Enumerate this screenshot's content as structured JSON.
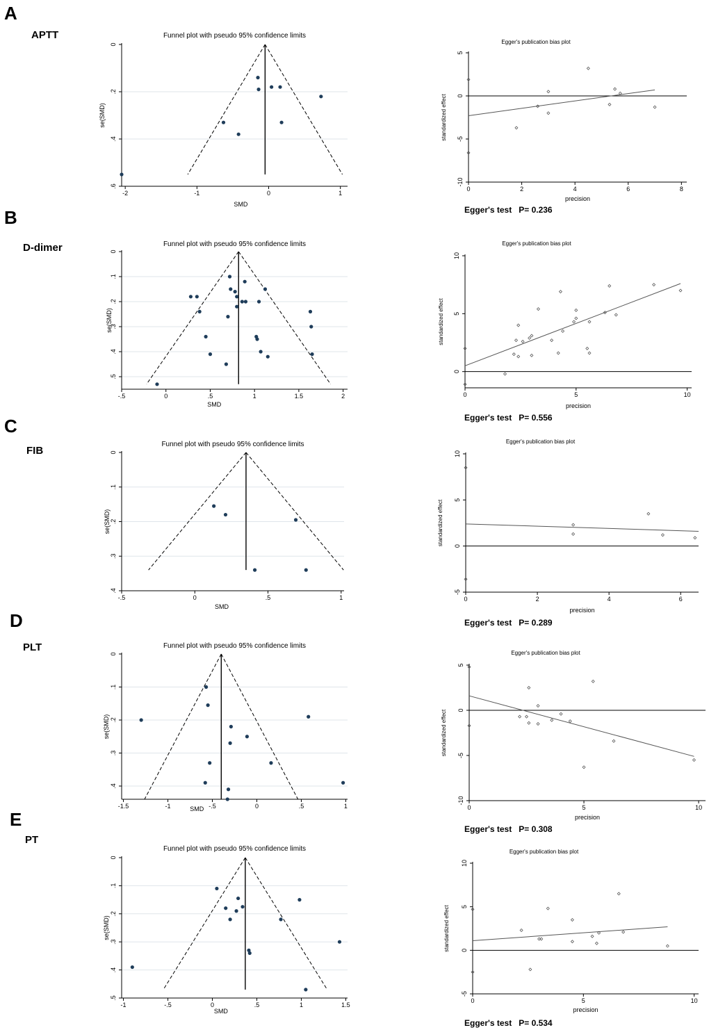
{
  "figure": {
    "panels": [
      {
        "letter": "A",
        "variable": "APTT",
        "egger_label": "Egger's test",
        "egger_p": "P= 0.236"
      },
      {
        "letter": "B",
        "variable": "D-dimer",
        "egger_label": "Egger's test",
        "egger_p": "P= 0.556"
      },
      {
        "letter": "C",
        "variable": "FIB",
        "egger_label": "Egger's test",
        "egger_p": "P= 0.289"
      },
      {
        "letter": "D",
        "variable": "PLT",
        "egger_label": "Egger's test",
        "egger_p": "P= 0.308"
      },
      {
        "letter": "E",
        "variable": "PT",
        "egger_label": "Egger's test",
        "egger_p": "P= 0.534"
      }
    ]
  },
  "chart_data": [
    {
      "id": "funnel-a",
      "type": "scatter",
      "title": "Funnel plot with pseudo 95% confidence limits",
      "xlabel": "SMD",
      "ylabel": "se(SMD)",
      "xlim": [
        -2.05,
        1.1
      ],
      "ylim": [
        0,
        0.6
      ],
      "xticks": [
        -2,
        -1,
        0,
        1
      ],
      "xtick_labels": [
        "-2",
        "-1",
        "0",
        "1"
      ],
      "yticks": [
        0,
        0.2,
        0.4,
        0.6
      ],
      "ytick_labels": [
        "0",
        ".2",
        ".4",
        ".6"
      ],
      "pooled": -0.05,
      "funnel_max_se": 0.55,
      "grid": true,
      "points": [
        [
          -2.05,
          0.55
        ],
        [
          -0.63,
          0.33
        ],
        [
          -0.42,
          0.38
        ],
        [
          -0.15,
          0.14
        ],
        [
          -0.14,
          0.19
        ],
        [
          0.04,
          0.18
        ],
        [
          0.16,
          0.18
        ],
        [
          0.18,
          0.33
        ],
        [
          0.73,
          0.22
        ]
      ]
    },
    {
      "id": "egger-a",
      "type": "scatter",
      "title": "Egger's publication bias plot",
      "xlabel": "precision",
      "ylabel": "standardized effect",
      "xlim": [
        0,
        8.2
      ],
      "ylim": [
        -10,
        5
      ],
      "xticks": [
        0,
        2,
        4,
        6,
        8
      ],
      "xtick_labels": [
        "0",
        "2",
        "4",
        "6",
        "8"
      ],
      "yticks": [
        -10,
        -5,
        0,
        5
      ],
      "ytick_labels": [
        "-10",
        "-5",
        "0",
        "5"
      ],
      "ci_low": -10,
      "ci_high": 5,
      "fit": [
        [
          0,
          -2.3
        ],
        [
          7,
          0.7
        ]
      ],
      "points": [
        [
          0,
          1.9
        ],
        [
          0,
          -6.6
        ],
        [
          1.8,
          -3.7
        ],
        [
          2.6,
          -1.2
        ],
        [
          3,
          0.5
        ],
        [
          3,
          -2
        ],
        [
          4.5,
          3.2
        ],
        [
          5.3,
          -1
        ],
        [
          5.5,
          0.8
        ],
        [
          5.7,
          0.3
        ],
        [
          7,
          -1.3
        ]
      ]
    },
    {
      "id": "funnel-b",
      "type": "scatter",
      "title": "Funnel plot with pseudo 95% confidence limits",
      "xlabel": "SMD",
      "ylabel": "se(SMD)",
      "xlim": [
        -0.5,
        2.05
      ],
      "ylim": [
        0,
        0.55
      ],
      "xticks": [
        -0.5,
        0,
        0.5,
        1,
        1.5,
        2
      ],
      "xtick_labels": [
        "-.5",
        "0",
        ".5",
        "1",
        "1.5",
        "2"
      ],
      "yticks": [
        0,
        0.1,
        0.2,
        0.3,
        0.4,
        0.5
      ],
      "ytick_labels": [
        "0",
        ".1",
        ".2",
        ".3",
        ".4",
        ".5"
      ],
      "pooled": 0.82,
      "funnel_max_se": 0.53,
      "grid": true,
      "points": [
        [
          -0.1,
          0.53
        ],
        [
          0.28,
          0.18
        ],
        [
          0.35,
          0.18
        ],
        [
          0.38,
          0.24
        ],
        [
          0.45,
          0.34
        ],
        [
          0.5,
          0.41
        ],
        [
          0.68,
          0.45
        ],
        [
          0.7,
          0.26
        ],
        [
          0.72,
          0.1
        ],
        [
          0.73,
          0.15
        ],
        [
          0.78,
          0.16
        ],
        [
          0.8,
          0.18
        ],
        [
          0.8,
          0.22
        ],
        [
          0.86,
          0.2
        ],
        [
          0.89,
          0.12
        ],
        [
          0.9,
          0.2
        ],
        [
          1.02,
          0.34
        ],
        [
          1.03,
          0.35
        ],
        [
          1.05,
          0.2
        ],
        [
          1.07,
          0.4
        ],
        [
          1.12,
          0.15
        ],
        [
          1.15,
          0.42
        ],
        [
          1.63,
          0.24
        ],
        [
          1.64,
          0.3
        ],
        [
          1.65,
          0.41
        ]
      ]
    },
    {
      "id": "egger-b",
      "type": "scatter",
      "title": "Egger's publication bias plot",
      "xlabel": "precision",
      "ylabel": "standardized effect",
      "xlim": [
        0,
        10.2
      ],
      "ylim": [
        -1.4,
        10
      ],
      "xticks": [
        0,
        5,
        10
      ],
      "xtick_labels": [
        "0",
        "5",
        "10"
      ],
      "yticks": [
        0,
        5,
        10
      ],
      "ytick_labels": [
        "0",
        "5",
        "10"
      ],
      "ci_low": -1.1,
      "ci_high": 10,
      "fit": [
        [
          0,
          0.5
        ],
        [
          9.7,
          7.6
        ]
      ],
      "points": [
        [
          0,
          2
        ],
        [
          0,
          -1.1
        ],
        [
          1.8,
          -0.2
        ],
        [
          2.2,
          1.5
        ],
        [
          2.3,
          2.7
        ],
        [
          2.4,
          4
        ],
        [
          2.4,
          1.3
        ],
        [
          2.6,
          2.6
        ],
        [
          2.9,
          2.9
        ],
        [
          3,
          3.1
        ],
        [
          3,
          1.4
        ],
        [
          3.3,
          5.4
        ],
        [
          3.9,
          2.7
        ],
        [
          4.2,
          1.6
        ],
        [
          4.3,
          6.9
        ],
        [
          4.4,
          3.5
        ],
        [
          4.9,
          4.3
        ],
        [
          5,
          5.3
        ],
        [
          5,
          4.6
        ],
        [
          5.5,
          2
        ],
        [
          5.6,
          1.6
        ],
        [
          5.6,
          4.3
        ],
        [
          6.3,
          5.1
        ],
        [
          6.5,
          7.4
        ],
        [
          6.8,
          4.9
        ],
        [
          8.5,
          7.5
        ],
        [
          9.7,
          7
        ]
      ]
    },
    {
      "id": "funnel-c",
      "type": "scatter",
      "title": "Funnel plot with pseudo 95% confidence limits",
      "xlabel": "SMD",
      "ylabel": "se(SMD)",
      "xlim": [
        -0.5,
        1.02
      ],
      "ylim": [
        0,
        0.4
      ],
      "xticks": [
        -0.5,
        0,
        0.5,
        1
      ],
      "xtick_labels": [
        "-.5",
        "0",
        ".5",
        "1"
      ],
      "yticks": [
        0,
        0.1,
        0.2,
        0.3,
        0.4
      ],
      "ytick_labels": [
        "0",
        ".1",
        ".2",
        ".3",
        ".4"
      ],
      "pooled": 0.35,
      "funnel_max_se": 0.34,
      "grid": true,
      "points": [
        [
          0.13,
          0.155
        ],
        [
          0.21,
          0.18
        ],
        [
          0.41,
          0.34
        ],
        [
          0.69,
          0.195
        ],
        [
          0.76,
          0.34
        ]
      ]
    },
    {
      "id": "egger-c",
      "type": "scatter",
      "title": "Egger's publication bias plot",
      "xlabel": "precision",
      "ylabel": "standardized effect",
      "xlim": [
        0,
        6.5
      ],
      "ylim": [
        -5,
        10
      ],
      "xticks": [
        0,
        2,
        4,
        6
      ],
      "xtick_labels": [
        "0",
        "2",
        "4",
        "6"
      ],
      "yticks": [
        -5,
        0,
        5,
        10
      ],
      "ytick_labels": [
        "-5",
        "0",
        "5",
        "10"
      ],
      "ci_low": -5,
      "ci_high": 10,
      "fit": [
        [
          0,
          2.4
        ],
        [
          6.5,
          1.6
        ]
      ],
      "points": [
        [
          0,
          8.5
        ],
        [
          0,
          -3.6
        ],
        [
          3,
          2.3
        ],
        [
          3,
          1.3
        ],
        [
          5.1,
          3.5
        ],
        [
          5.5,
          1.2
        ],
        [
          6.4,
          0.9
        ]
      ]
    },
    {
      "id": "funnel-d",
      "type": "scatter",
      "title": "Funnel plot with pseudo 95% confidence limits",
      "xlabel": "SMD",
      "ylabel": "se(SMD)",
      "xlim": [
        -1.52,
        1.02
      ],
      "ylim": [
        0,
        0.44
      ],
      "xticks": [
        -1.5,
        -1,
        -0.5,
        0,
        0.5,
        1
      ],
      "xtick_labels": [
        "-1.5",
        "-1",
        "-.5",
        "0",
        ".5",
        "1"
      ],
      "yticks": [
        0,
        0.1,
        0.2,
        0.3,
        0.4
      ],
      "ytick_labels": [
        "0",
        ".1",
        ".2",
        ".3",
        ".4"
      ],
      "pooled": -0.4,
      "funnel_max_se": 0.44,
      "grid": true,
      "points": [
        [
          -1.3,
          0.2
        ],
        [
          -0.58,
          0.39
        ],
        [
          -0.57,
          0.1
        ],
        [
          -0.55,
          0.155
        ],
        [
          -0.53,
          0.33
        ],
        [
          -0.33,
          0.44
        ],
        [
          -0.32,
          0.41
        ],
        [
          -0.3,
          0.27
        ],
        [
          -0.29,
          0.22
        ],
        [
          -0.11,
          0.25
        ],
        [
          0.16,
          0.33
        ],
        [
          0.58,
          0.19
        ],
        [
          0.97,
          0.39
        ]
      ]
    },
    {
      "id": "egger-d",
      "type": "scatter",
      "title": "Egger's publication bias plot",
      "xlabel": "precision",
      "ylabel": "standardized effect",
      "xlim": [
        0,
        10.3
      ],
      "ylim": [
        -10,
        5
      ],
      "xticks": [
        0,
        5,
        10
      ],
      "xtick_labels": [
        "0",
        "5",
        "10"
      ],
      "yticks": [
        -10,
        -5,
        0,
        5
      ],
      "ytick_labels": [
        "-10",
        "-5",
        "0",
        "5"
      ],
      "ci_low": -10,
      "ci_high": 5,
      "fit": [
        [
          0,
          1.6
        ],
        [
          9.8,
          -5.1
        ]
      ],
      "points": [
        [
          0,
          4.8
        ],
        [
          0,
          -1.7
        ],
        [
          2.2,
          -0.7
        ],
        [
          2.5,
          -0.7
        ],
        [
          2.6,
          2.5
        ],
        [
          2.6,
          -1.4
        ],
        [
          3,
          0.5
        ],
        [
          3,
          -1.5
        ],
        [
          3.6,
          -1.1
        ],
        [
          4,
          -0.4
        ],
        [
          4.4,
          -1.2
        ],
        [
          5,
          -6.3
        ],
        [
          5.4,
          3.2
        ],
        [
          6.3,
          -3.4
        ],
        [
          9.8,
          -5.5
        ]
      ]
    },
    {
      "id": "funnel-e",
      "type": "scatter",
      "title": "Funnel plot with pseudo 95% confidence limits",
      "xlabel": "SMD",
      "ylabel": "se(SMD)",
      "xlim": [
        -1.02,
        1.52
      ],
      "ylim": [
        0,
        0.5
      ],
      "xticks": [
        -1,
        -0.5,
        0,
        0.5,
        1,
        1.5
      ],
      "xtick_labels": [
        "-1",
        "-.5",
        "0",
        ".5",
        "1",
        "1.5"
      ],
      "yticks": [
        0,
        0.1,
        0.2,
        0.3,
        0.4,
        0.5
      ],
      "ytick_labels": [
        "0",
        ".1",
        ".2",
        ".3",
        ".4",
        ".5"
      ],
      "pooled": 0.37,
      "funnel_max_se": 0.47,
      "grid": true,
      "points": [
        [
          -0.9,
          0.39
        ],
        [
          0.05,
          0.11
        ],
        [
          0.15,
          0.18
        ],
        [
          0.2,
          0.22
        ],
        [
          0.27,
          0.19
        ],
        [
          0.29,
          0.145
        ],
        [
          0.34,
          0.175
        ],
        [
          0.41,
          0.33
        ],
        [
          0.42,
          0.34
        ],
        [
          0.77,
          0.22
        ],
        [
          0.98,
          0.15
        ],
        [
          1.05,
          0.47
        ],
        [
          1.43,
          0.3
        ]
      ]
    },
    {
      "id": "egger-e",
      "type": "scatter",
      "title": "Egger's publication bias plot",
      "xlabel": "precision",
      "ylabel": "standardized effect",
      "xlim": [
        0,
        10.2
      ],
      "ylim": [
        -5,
        10
      ],
      "xticks": [
        0,
        5,
        10
      ],
      "xtick_labels": [
        "0",
        "5",
        "10"
      ],
      "yticks": [
        -5,
        0,
        5,
        10
      ],
      "ytick_labels": [
        "-5",
        "0",
        "5",
        "10"
      ],
      "ci_low": -5,
      "ci_high": 10,
      "fit": [
        [
          0,
          1.1
        ],
        [
          8.8,
          2.7
        ]
      ],
      "points": [
        [
          0,
          4.7
        ],
        [
          0,
          -2.5
        ],
        [
          2.2,
          2.3
        ],
        [
          2.6,
          -2.2
        ],
        [
          3,
          1.3
        ],
        [
          3.1,
          1.3
        ],
        [
          3.4,
          4.8
        ],
        [
          4.5,
          3.5
        ],
        [
          4.5,
          1
        ],
        [
          5.4,
          1.6
        ],
        [
          5.6,
          0.8
        ],
        [
          5.7,
          2
        ],
        [
          6.6,
          6.5
        ],
        [
          6.8,
          2.1
        ],
        [
          8.8,
          0.5
        ]
      ]
    }
  ]
}
